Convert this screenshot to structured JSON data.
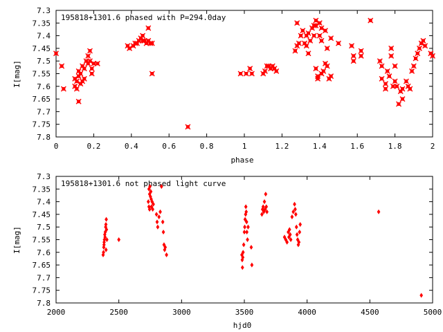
{
  "chart_data": [
    {
      "type": "scatter",
      "title": "195818+1301.6 phased with P=294.0day",
      "xlabel": "phase",
      "ylabel": "I[mag]",
      "xlim": [
        0,
        2
      ],
      "ylim": [
        7.3,
        7.8
      ],
      "y_inverted": true,
      "grid": false,
      "legend": "none",
      "color": "#ff0000",
      "marker": "x-cross",
      "xticks": [
        "0",
        "0.2",
        "0.4",
        "0.6",
        "0.8",
        "1",
        "1.2",
        "1.4",
        "1.6",
        "1.8",
        "2"
      ],
      "yticks": [
        "7.3",
        "7.35",
        "7.4",
        "7.45",
        "7.5",
        "7.55",
        "7.6",
        "7.65",
        "7.7",
        "7.75",
        "7.8"
      ],
      "points": [
        [
          0.0,
          7.47
        ],
        [
          0.03,
          7.52
        ],
        [
          0.04,
          7.61
        ],
        [
          0.1,
          7.57
        ],
        [
          0.1,
          7.6
        ],
        [
          0.11,
          7.58
        ],
        [
          0.11,
          7.61
        ],
        [
          0.12,
          7.54
        ],
        [
          0.12,
          7.56
        ],
        [
          0.12,
          7.66
        ],
        [
          0.13,
          7.55
        ],
        [
          0.13,
          7.59
        ],
        [
          0.14,
          7.52
        ],
        [
          0.14,
          7.58
        ],
        [
          0.15,
          7.53
        ],
        [
          0.15,
          7.57
        ],
        [
          0.16,
          7.5
        ],
        [
          0.17,
          7.48
        ],
        [
          0.17,
          7.51
        ],
        [
          0.18,
          7.46
        ],
        [
          0.18,
          7.5
        ],
        [
          0.19,
          7.53
        ],
        [
          0.19,
          7.55
        ],
        [
          0.2,
          7.51
        ],
        [
          0.22,
          7.51
        ],
        [
          0.38,
          7.44
        ],
        [
          0.39,
          7.45
        ],
        [
          0.41,
          7.44
        ],
        [
          0.42,
          7.43
        ],
        [
          0.43,
          7.43
        ],
        [
          0.44,
          7.42
        ],
        [
          0.45,
          7.41
        ],
        [
          0.46,
          7.4
        ],
        [
          0.46,
          7.42
        ],
        [
          0.47,
          7.42
        ],
        [
          0.48,
          7.43
        ],
        [
          0.49,
          7.37
        ],
        [
          0.49,
          7.42
        ],
        [
          0.5,
          7.43
        ],
        [
          0.51,
          7.55
        ],
        [
          0.51,
          7.43
        ],
        [
          0.7,
          7.76
        ],
        [
          0.98,
          7.55
        ],
        [
          1.01,
          7.55
        ],
        [
          1.03,
          7.53
        ],
        [
          1.04,
          7.55
        ],
        [
          1.1,
          7.55
        ],
        [
          1.11,
          7.54
        ],
        [
          1.12,
          7.52
        ],
        [
          1.13,
          7.52
        ],
        [
          1.14,
          7.53
        ],
        [
          1.15,
          7.52
        ],
        [
          1.16,
          7.53
        ],
        [
          1.17,
          7.54
        ],
        [
          1.27,
          7.46
        ],
        [
          1.28,
          7.44
        ],
        [
          1.28,
          7.35
        ],
        [
          1.29,
          7.43
        ],
        [
          1.3,
          7.4
        ],
        [
          1.31,
          7.38
        ],
        [
          1.32,
          7.43
        ],
        [
          1.33,
          7.4
        ],
        [
          1.33,
          7.44
        ],
        [
          1.34,
          7.39
        ],
        [
          1.34,
          7.47
        ],
        [
          1.35,
          7.42
        ],
        [
          1.36,
          7.37
        ],
        [
          1.37,
          7.36
        ],
        [
          1.37,
          7.4
        ],
        [
          1.38,
          7.34
        ],
        [
          1.38,
          7.36
        ],
        [
          1.38,
          7.53
        ],
        [
          1.39,
          7.56
        ],
        [
          1.39,
          7.57
        ],
        [
          1.4,
          7.35
        ],
        [
          1.4,
          7.4
        ],
        [
          1.41,
          7.37
        ],
        [
          1.41,
          7.42
        ],
        [
          1.41,
          7.55
        ],
        [
          1.42,
          7.54
        ],
        [
          1.43,
          7.38
        ],
        [
          1.43,
          7.51
        ],
        [
          1.44,
          7.52
        ],
        [
          1.44,
          7.45
        ],
        [
          1.45,
          7.57
        ],
        [
          1.46,
          7.56
        ],
        [
          1.46,
          7.41
        ],
        [
          1.5,
          7.43
        ],
        [
          1.57,
          7.44
        ],
        [
          1.58,
          7.5
        ],
        [
          1.58,
          7.48
        ],
        [
          1.62,
          7.46
        ],
        [
          1.62,
          7.48
        ],
        [
          1.67,
          7.34
        ],
        [
          1.72,
          7.5
        ],
        [
          1.73,
          7.52
        ],
        [
          1.73,
          7.57
        ],
        [
          1.75,
          7.59
        ],
        [
          1.75,
          7.61
        ],
        [
          1.76,
          7.54
        ],
        [
          1.77,
          7.56
        ],
        [
          1.78,
          7.45
        ],
        [
          1.78,
          7.48
        ],
        [
          1.79,
          7.6
        ],
        [
          1.8,
          7.52
        ],
        [
          1.8,
          7.58
        ],
        [
          1.81,
          7.6
        ],
        [
          1.82,
          7.67
        ],
        [
          1.83,
          7.62
        ],
        [
          1.84,
          7.61
        ],
        [
          1.84,
          7.65
        ],
        [
          1.86,
          7.58
        ],
        [
          1.87,
          7.6
        ],
        [
          1.88,
          7.61
        ],
        [
          1.89,
          7.54
        ],
        [
          1.9,
          7.52
        ],
        [
          1.91,
          7.49
        ],
        [
          1.92,
          7.47
        ],
        [
          1.93,
          7.45
        ],
        [
          1.94,
          7.43
        ],
        [
          1.95,
          7.42
        ],
        [
          1.96,
          7.44
        ],
        [
          1.99,
          7.47
        ],
        [
          2.0,
          7.48
        ]
      ]
    },
    {
      "type": "scatter",
      "title": "195818+1301.6 not phased light curve",
      "xlabel": "hjd0",
      "ylabel": "I[mag]",
      "xlim": [
        2000,
        5000
      ],
      "ylim": [
        7.3,
        7.8
      ],
      "y_inverted": true,
      "grid": false,
      "legend": "none",
      "color": "#ff0000",
      "marker": "diamond",
      "xticks": [
        "2000",
        "2500",
        "3000",
        "3500",
        "4000",
        "4500",
        "5000"
      ],
      "yticks": [
        "7.3",
        "7.35",
        "7.4",
        "7.45",
        "7.5",
        "7.55",
        "7.6",
        "7.65",
        "7.7",
        "7.75",
        "7.8"
      ],
      "points": [
        [
          2375,
          7.61
        ],
        [
          2378,
          7.6
        ],
        [
          2380,
          7.58
        ],
        [
          2383,
          7.56
        ],
        [
          2385,
          7.55
        ],
        [
          2388,
          7.53
        ],
        [
          2390,
          7.54
        ],
        [
          2392,
          7.52
        ],
        [
          2395,
          7.5
        ],
        [
          2397,
          7.49
        ],
        [
          2400,
          7.47
        ],
        [
          2402,
          7.51
        ],
        [
          2405,
          7.55
        ],
        [
          2398,
          7.59
        ],
        [
          2382,
          7.57
        ],
        [
          2500,
          7.55
        ],
        [
          2735,
          7.4
        ],
        [
          2740,
          7.35
        ],
        [
          2745,
          7.37
        ],
        [
          2748,
          7.34
        ],
        [
          2752,
          7.38
        ],
        [
          2755,
          7.36
        ],
        [
          2758,
          7.39
        ],
        [
          2760,
          7.42
        ],
        [
          2765,
          7.4
        ],
        [
          2770,
          7.43
        ],
        [
          2775,
          7.41
        ],
        [
          2745,
          7.43
        ],
        [
          2740,
          7.42
        ],
        [
          2800,
          7.45
        ],
        [
          2805,
          7.48
        ],
        [
          2810,
          7.5
        ],
        [
          2820,
          7.46
        ],
        [
          2830,
          7.44
        ],
        [
          2840,
          7.34
        ],
        [
          2850,
          7.48
        ],
        [
          2855,
          7.52
        ],
        [
          2860,
          7.57
        ],
        [
          2865,
          7.59
        ],
        [
          2870,
          7.58
        ],
        [
          2880,
          7.61
        ],
        [
          3480,
          7.61
        ],
        [
          3483,
          7.63
        ],
        [
          3485,
          7.66
        ],
        [
          3488,
          7.62
        ],
        [
          3490,
          7.6
        ],
        [
          3495,
          7.57
        ],
        [
          3500,
          7.52
        ],
        [
          3503,
          7.5
        ],
        [
          3506,
          7.47
        ],
        [
          3510,
          7.45
        ],
        [
          3512,
          7.42
        ],
        [
          3515,
          7.44
        ],
        [
          3518,
          7.48
        ],
        [
          3520,
          7.52
        ],
        [
          3525,
          7.55
        ],
        [
          3530,
          7.5
        ],
        [
          3555,
          7.58
        ],
        [
          3560,
          7.65
        ],
        [
          3640,
          7.45
        ],
        [
          3645,
          7.43
        ],
        [
          3650,
          7.42
        ],
        [
          3655,
          7.44
        ],
        [
          3660,
          7.4
        ],
        [
          3665,
          7.43
        ],
        [
          3670,
          7.37
        ],
        [
          3675,
          7.42
        ],
        [
          3680,
          7.44
        ],
        [
          3820,
          7.54
        ],
        [
          3830,
          7.55
        ],
        [
          3840,
          7.56
        ],
        [
          3850,
          7.52
        ],
        [
          3855,
          7.54
        ],
        [
          3860,
          7.51
        ],
        [
          3865,
          7.53
        ],
        [
          3870,
          7.55
        ],
        [
          3880,
          7.46
        ],
        [
          3890,
          7.44
        ],
        [
          3900,
          7.41
        ],
        [
          3905,
          7.43
        ],
        [
          3910,
          7.45
        ],
        [
          3915,
          7.5
        ],
        [
          3920,
          7.53
        ],
        [
          3925,
          7.55
        ],
        [
          3930,
          7.57
        ],
        [
          3935,
          7.56
        ],
        [
          3940,
          7.52
        ],
        [
          3945,
          7.49
        ],
        [
          4570,
          7.44
        ],
        [
          4910,
          7.77
        ]
      ]
    }
  ]
}
